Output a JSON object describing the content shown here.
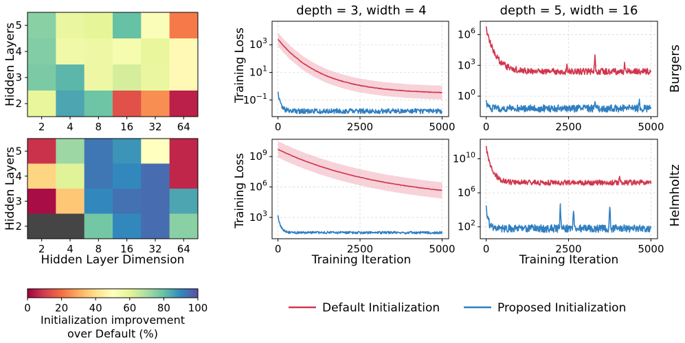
{
  "colors": {
    "default_line": "#d1364e",
    "default_band": "#f2b4c0",
    "proposed_line": "#2f7fc1",
    "proposed_band": "#9cc3e6",
    "grid": "#d9d9d9",
    "na_cell": "#454545"
  },
  "chart_data": [
    {
      "type": "heatmap",
      "id": "burgers_heatmap",
      "title": "",
      "xlabel": "",
      "ylabel": "Hidden Layers",
      "x_categories": [
        "2",
        "4",
        "8",
        "16",
        "32",
        "64"
      ],
      "y_categories": [
        "5",
        "4",
        "3",
        "2"
      ],
      "values": [
        [
          75,
          58,
          60,
          80,
          52,
          22
        ],
        [
          76,
          56,
          57,
          54,
          59,
          48
        ],
        [
          77,
          82,
          57,
          63,
          58,
          48
        ],
        [
          59,
          85,
          79,
          14,
          25,
          5
        ]
      ]
    },
    {
      "type": "heatmap",
      "id": "helmholtz_heatmap",
      "title": "",
      "xlabel": "Hidden Layer Dimension",
      "ylabel": "Hidden Layers",
      "x_categories": [
        "2",
        "4",
        "8",
        "16",
        "32",
        "64"
      ],
      "y_categories": [
        "5",
        "4",
        "3",
        "2"
      ],
      "values": [
        [
          8,
          72,
          93,
          88,
          50,
          6
        ],
        [
          38,
          61,
          93,
          90,
          95,
          6
        ],
        [
          2,
          35,
          90,
          94,
          95,
          85
        ],
        [
          null,
          null,
          78,
          90,
          95,
          75
        ]
      ]
    },
    {
      "type": "colorbar",
      "id": "colorbar",
      "label_line1": "Initialization improvement",
      "label_line2": "over Default (%)",
      "range": [
        0,
        100
      ],
      "ticks": [
        "0",
        "20",
        "40",
        "60",
        "80",
        "100"
      ],
      "colormap": "Spectral"
    },
    {
      "type": "line",
      "id": "burgers_d3_w4",
      "title": "depth = 3, width = 4",
      "xlabel": "",
      "ylabel": "Training Loss",
      "yscale": "log",
      "xlim": [
        -180,
        5200
      ],
      "ylim_log10": [
        -2.2,
        4.7
      ],
      "xticks": [
        "0",
        "2500",
        "5000"
      ],
      "yticks": [
        {
          "exp": -1,
          "label": "10",
          "sup": "−1"
        },
        {
          "exp": 1,
          "label": "10",
          "sup": "1"
        },
        {
          "exp": 3,
          "label": "10",
          "sup": "3"
        }
      ],
      "series": [
        {
          "name": "Default Initialization",
          "log10_start": 3.4,
          "log10_end": -0.55,
          "decay": 0.00075,
          "band_log10": 0.5,
          "noise_log10": 0.02,
          "spikes": []
        },
        {
          "name": "Proposed Initialization",
          "log10_start": -0.4,
          "log10_end": -1.8,
          "decay": 0.012,
          "band_log10": 0.05,
          "noise_log10": 0.18,
          "spikes": []
        }
      ]
    },
    {
      "type": "line",
      "id": "burgers_d5_w16",
      "title": "depth = 5, width = 16",
      "xlabel": "",
      "ylabel": "",
      "yscale": "log",
      "xlim": [
        -180,
        5200
      ],
      "ylim_log10": [
        -2.0,
        7.3
      ],
      "xticks": [
        "0",
        "2500",
        "5000"
      ],
      "yticks": [
        {
          "exp": 0,
          "label": "10",
          "sup": "0"
        },
        {
          "exp": 3,
          "label": "10",
          "sup": "3"
        },
        {
          "exp": 6,
          "label": "10",
          "sup": "6"
        }
      ],
      "series": [
        {
          "name": "Default Initialization",
          "log10_start": 6.8,
          "log10_end": 2.4,
          "decay": 0.0035,
          "band_log10": 0.15,
          "noise_log10": 0.3,
          "spikes": [
            {
              "x": 3300,
              "h": 1.6
            },
            {
              "x": 4200,
              "h": 1.0
            },
            {
              "x": 2450,
              "h": 0.6
            }
          ]
        },
        {
          "name": "Proposed Initialization",
          "log10_start": -0.4,
          "log10_end": -1.2,
          "decay": 0.02,
          "band_log10": 0.12,
          "noise_log10": 0.35,
          "spikes": [
            {
              "x": 4650,
              "h": 1.0
            },
            {
              "x": 3300,
              "h": 0.6
            }
          ]
        }
      ]
    },
    {
      "type": "line",
      "id": "helmholtz_d3_w4",
      "title": "",
      "xlabel": "Training Iteration",
      "ylabel": "Training Loss",
      "yscale": "log",
      "xlim": [
        -180,
        5200
      ],
      "ylim_log10": [
        0.9,
        10.7
      ],
      "xticks": [
        "0",
        "2500",
        "5000"
      ],
      "yticks": [
        {
          "exp": 3,
          "label": "10",
          "sup": "3"
        },
        {
          "exp": 6,
          "label": "10",
          "sup": "6"
        },
        {
          "exp": 9,
          "label": "10",
          "sup": "9"
        }
      ],
      "series": [
        {
          "name": "Default Initialization",
          "log10_start": 9.7,
          "log10_end": 4.5,
          "decay": 0.0003,
          "band_log10": 0.8,
          "noise_log10": 0.02,
          "spikes": []
        },
        {
          "name": "Proposed Initialization",
          "log10_start": 3.2,
          "log10_end": 1.5,
          "decay": 0.012,
          "band_log10": 0.05,
          "noise_log10": 0.12,
          "spikes": []
        }
      ]
    },
    {
      "type": "line",
      "id": "helmholtz_d5_w16",
      "title": "",
      "xlabel": "Training Iteration",
      "ylabel": "",
      "yscale": "log",
      "xlim": [
        -180,
        5200
      ],
      "ylim_log10": [
        0.6,
        12.3
      ],
      "xticks": [
        "0",
        "2500",
        "5000"
      ],
      "yticks": [
        {
          "exp": 2,
          "label": "10",
          "sup": "2"
        },
        {
          "exp": 6,
          "label": "10",
          "sup": "6"
        },
        {
          "exp": 10,
          "label": "10",
          "sup": "10"
        }
      ],
      "series": [
        {
          "name": "Default Initialization",
          "log10_start": 11.5,
          "log10_end": 7.2,
          "decay": 0.0055,
          "band_log10": 0.2,
          "noise_log10": 0.3,
          "spikes": [
            {
              "x": 4050,
              "h": 1.0
            }
          ]
        },
        {
          "name": "Proposed Initialization",
          "log10_start": 4.5,
          "log10_end": 1.8,
          "decay": 0.015,
          "band_log10": 0.15,
          "noise_log10": 0.45,
          "spikes": [
            {
              "x": 2250,
              "h": 2.8
            },
            {
              "x": 2650,
              "h": 2.4
            },
            {
              "x": 3750,
              "h": 2.8
            }
          ]
        }
      ]
    }
  ],
  "row_labels": [
    "Burgers",
    "Helmholtz"
  ],
  "legend": {
    "default_label": "Default Initialization",
    "proposed_label": "Proposed Initialization"
  }
}
